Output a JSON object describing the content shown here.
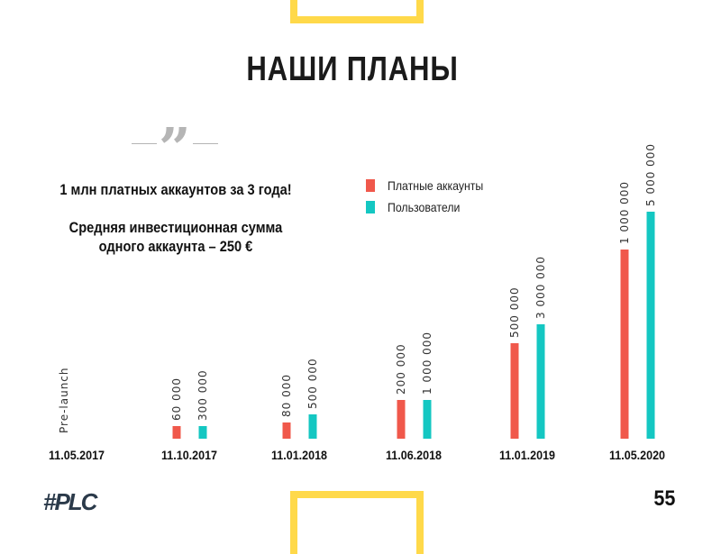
{
  "slide": {
    "title": "НАШИ ПЛАНЫ",
    "quote_line1": "1 млн платных аккаунтов за 3 года!",
    "quote_line2": "Средняя инвестиционная  сумма",
    "quote_line3": "одного аккаунта – 250 €",
    "logo": "#PLC",
    "page_number": "55"
  },
  "colors": {
    "paid": "#F0584B",
    "users": "#14C7C2",
    "accent": "#FFD94A"
  },
  "chart_data": {
    "type": "bar",
    "title": "",
    "categories": [
      "11.05.2017",
      "11.10.2017",
      "11.01.2018",
      "11.06.2018",
      "11.01.2019",
      "11.05.2020"
    ],
    "series": [
      {
        "name": "Платные аккаунты",
        "values": [
          0,
          60000,
          80000,
          200000,
          500000,
          1000000
        ],
        "labels": [
          "Pre-launch",
          "60 000",
          "80 000",
          "200 000",
          "500 000",
          "1 000 000"
        ]
      },
      {
        "name": "Пользователи",
        "values": [
          0,
          300000,
          500000,
          1000000,
          3000000,
          5000000
        ],
        "labels": [
          "",
          "300 000",
          "500 000",
          "1 000 000",
          "3 000 000",
          "5 000 000"
        ]
      }
    ],
    "legend": "top-left of plot",
    "grid": false,
    "xlabel": "",
    "ylabel": ""
  }
}
